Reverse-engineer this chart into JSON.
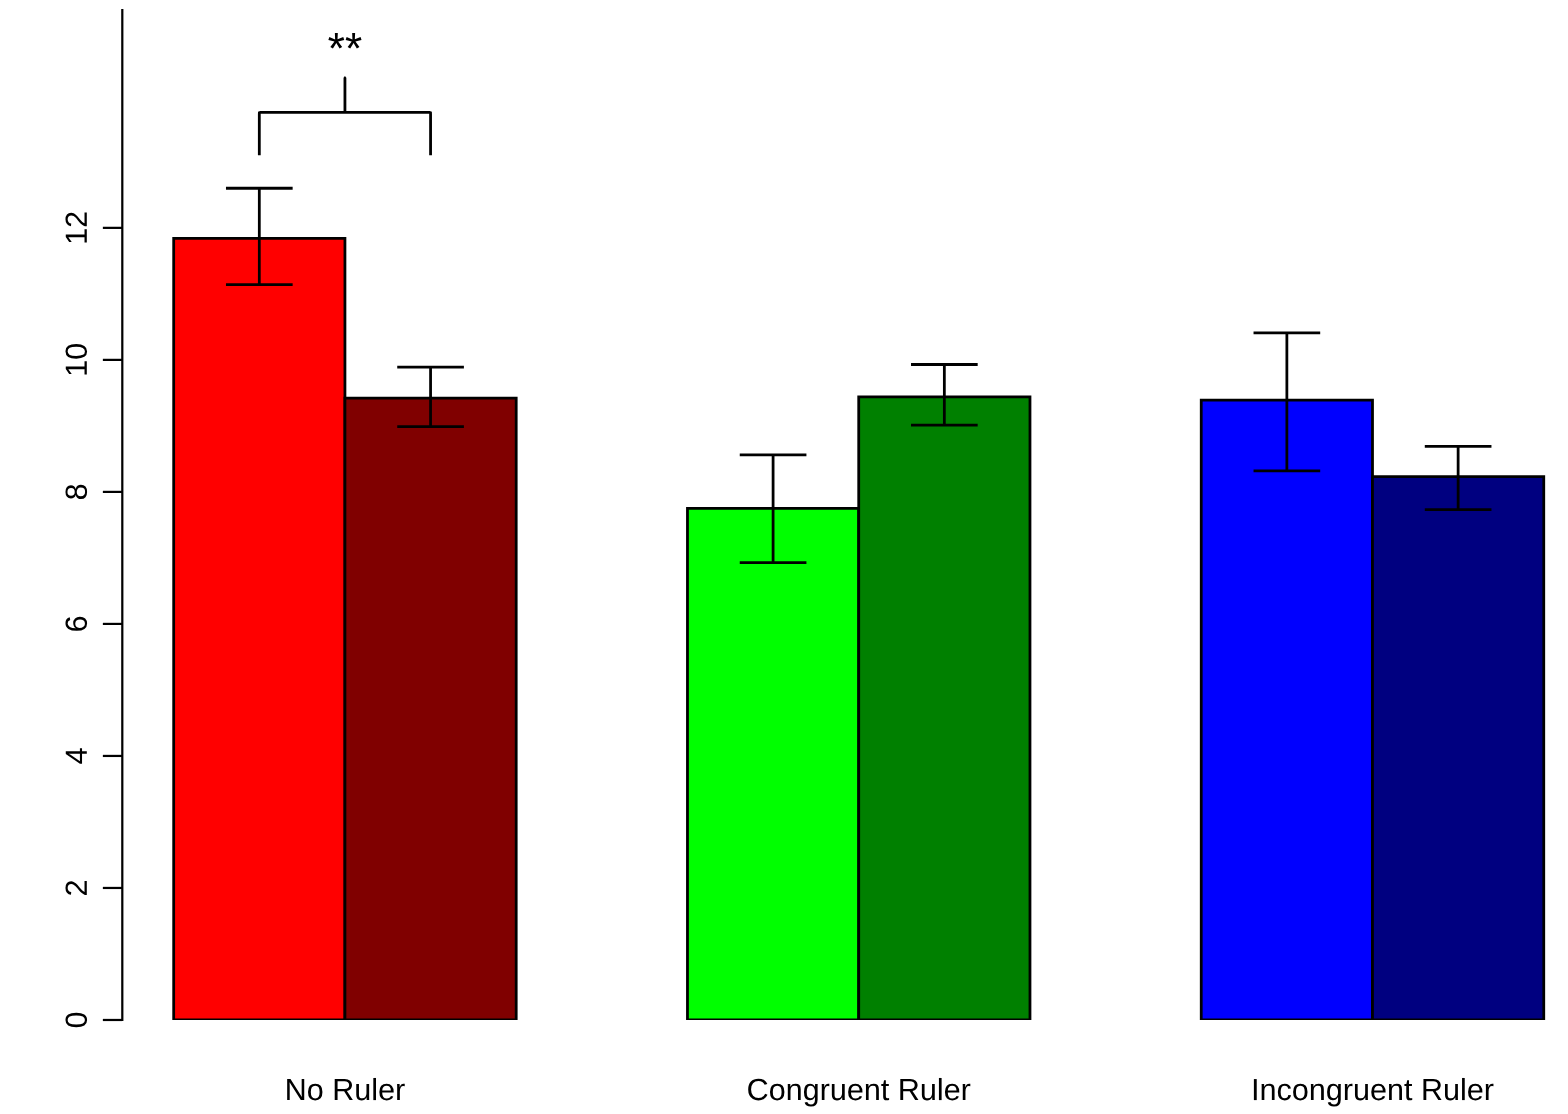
{
  "chart_data": {
    "type": "bar",
    "categories": [
      "No Ruler",
      "Congruent Ruler",
      "Incongruent Ruler"
    ],
    "series": [
      {
        "colors": [
          "#ff0000",
          "#00ff00",
          "#0000ff"
        ],
        "values": [
          11.84,
          7.75,
          9.39
        ],
        "errors": [
          [
            11.14,
            12.6
          ],
          [
            6.93,
            8.56
          ],
          [
            8.32,
            10.41
          ]
        ]
      },
      {
        "colors": [
          "#800000",
          "#008000",
          "#000080"
        ],
        "values": [
          9.42,
          9.44,
          8.23
        ],
        "errors": [
          [
            8.99,
            9.89
          ],
          [
            9.01,
            9.93
          ],
          [
            7.73,
            8.69
          ]
        ]
      }
    ],
    "ylim": [
      0,
      15.3
    ],
    "yticks": [
      0,
      2,
      4,
      6,
      8,
      10,
      12
    ],
    "annotations": [
      "**"
    ],
    "grid": false,
    "legend": false
  }
}
